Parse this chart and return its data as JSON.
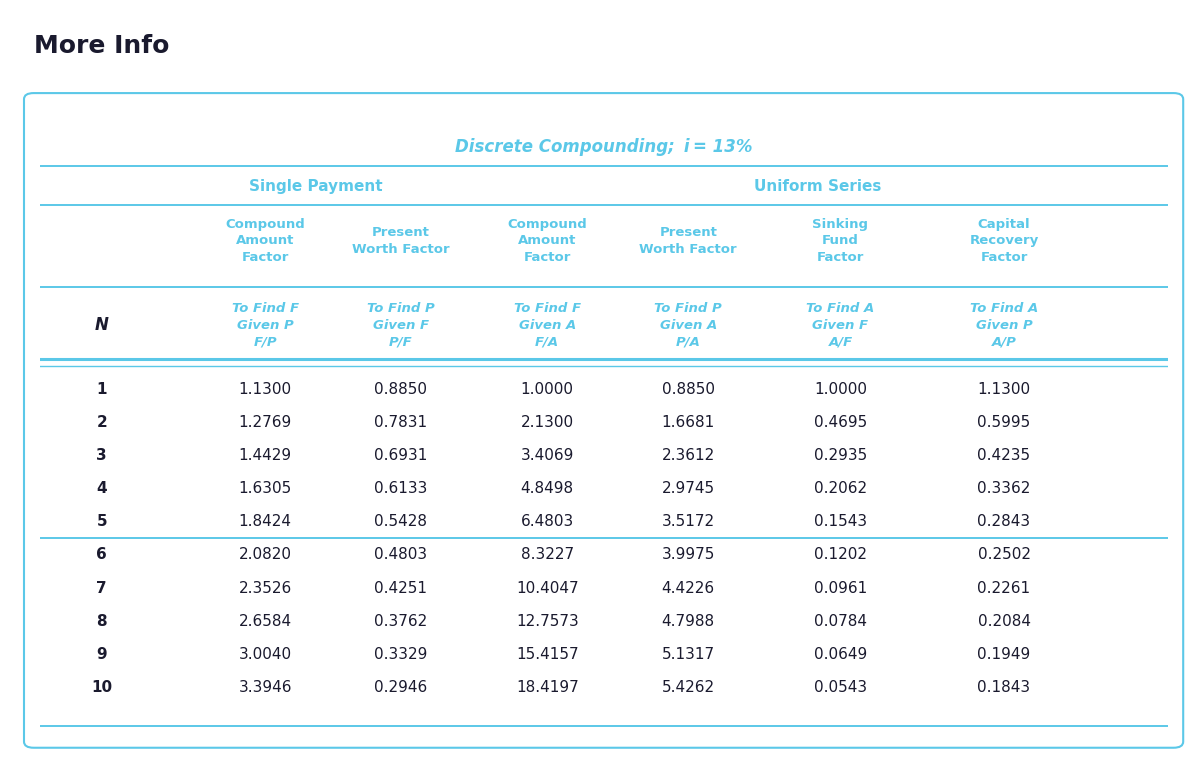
{
  "title": "More Info",
  "table_title": "Discrete Compounding;  i = 13%",
  "single_payment_label": "Single Payment",
  "uniform_series_label": "Uniform Series",
  "N_values": [
    1,
    2,
    3,
    4,
    5,
    6,
    7,
    8,
    9,
    10
  ],
  "FP": [
    1.13,
    1.2769,
    1.4429,
    1.6305,
    1.8424,
    2.082,
    2.3526,
    2.6584,
    3.004,
    3.3946
  ],
  "PF": [
    0.885,
    0.7831,
    0.6931,
    0.6133,
    0.5428,
    0.4803,
    0.4251,
    0.3762,
    0.3329,
    0.2946
  ],
  "FA": [
    1.0,
    2.13,
    3.4069,
    4.8498,
    6.4803,
    8.3227,
    10.4047,
    12.7573,
    15.4157,
    18.4197
  ],
  "PA": [
    0.885,
    1.6681,
    2.3612,
    2.9745,
    3.5172,
    3.9975,
    4.4226,
    4.7988,
    5.1317,
    5.4262
  ],
  "AF": [
    1.0,
    0.4695,
    0.2935,
    0.2062,
    0.1543,
    0.1202,
    0.0961,
    0.0784,
    0.0649,
    0.0543
  ],
  "AP": [
    1.13,
    0.5995,
    0.4235,
    0.3362,
    0.2843,
    0.2502,
    0.2261,
    0.2084,
    0.1949,
    0.1843
  ],
  "cyan": "#5BC8E8",
  "dark": "#1A1A2E",
  "bg": "#FFFFFF",
  "box_bg": "#FAFAFA",
  "title_fontsize": 18,
  "table_title_fontsize": 12,
  "group_header_fontsize": 10,
  "sub_header_fontsize": 9.5,
  "data_fontsize": 11,
  "N_label_fontsize": 12
}
